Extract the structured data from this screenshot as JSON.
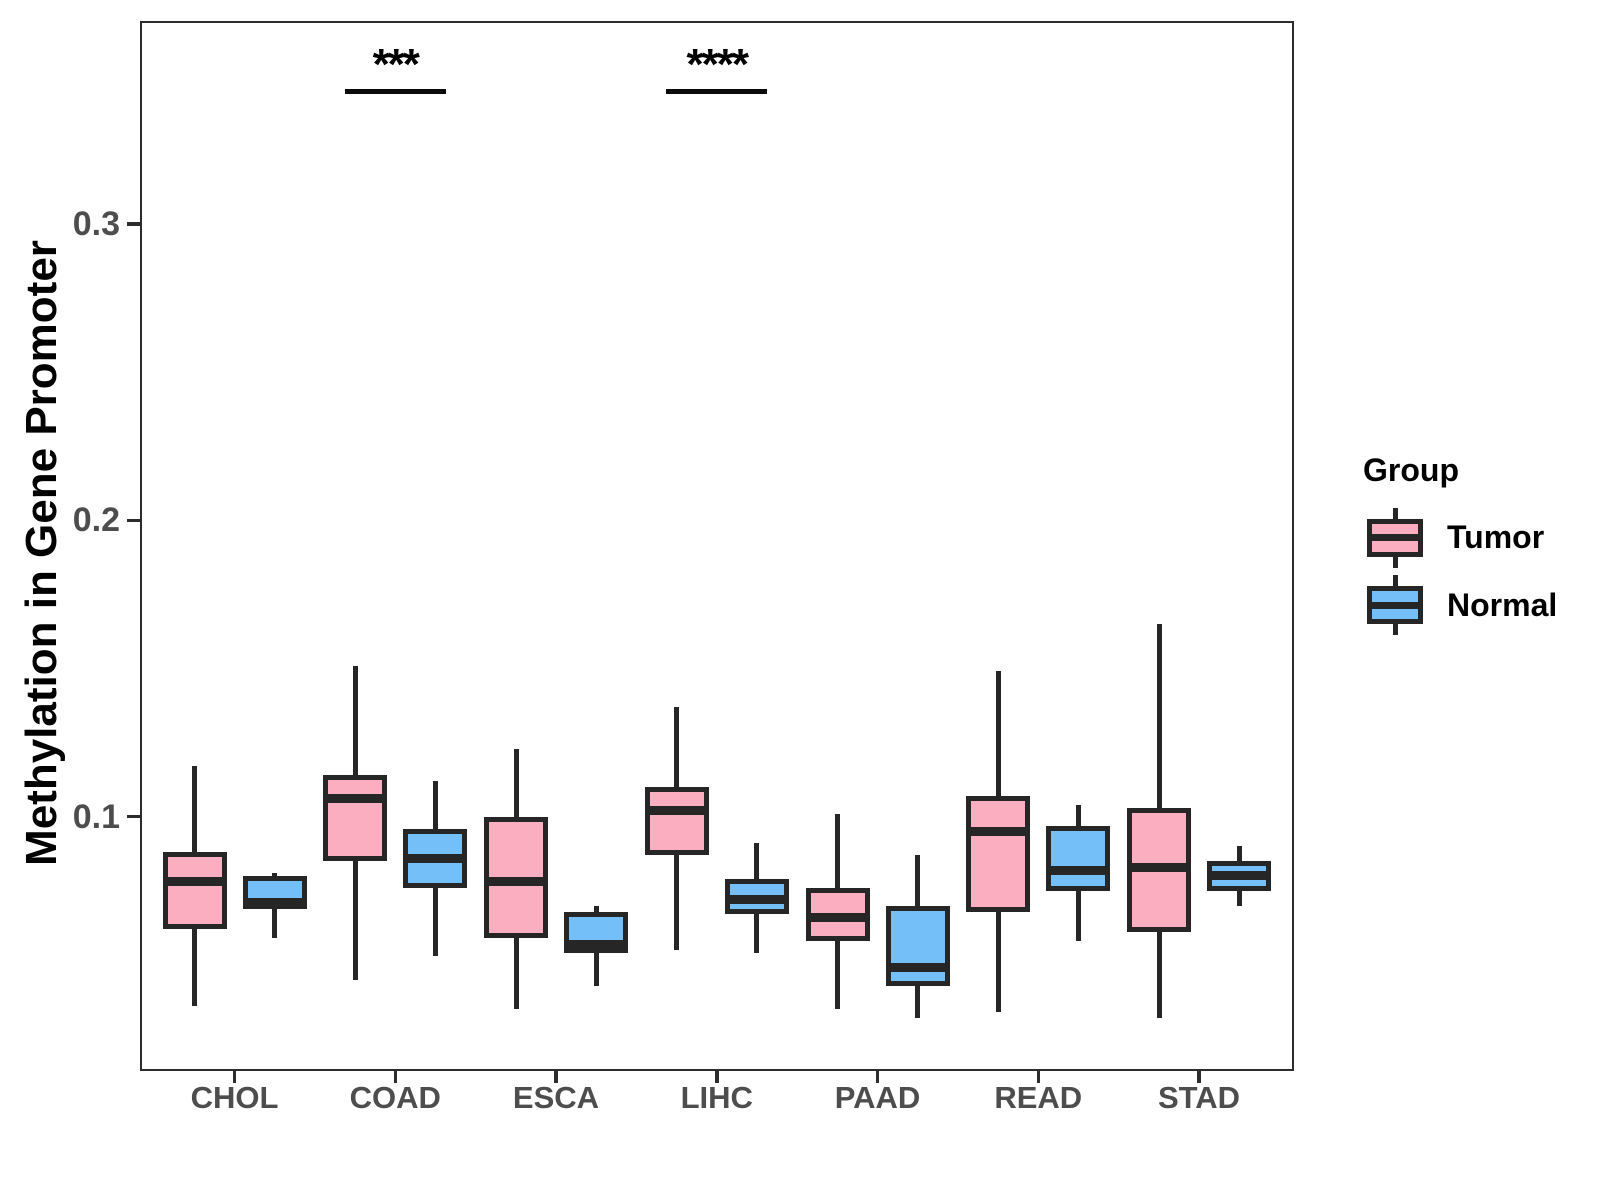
{
  "chart_data": {
    "type": "boxplot",
    "title": "",
    "ylabel": "Methylation in Gene Promoter",
    "xlabel": "",
    "categories": [
      "CHOL",
      "COAD",
      "ESCA",
      "LIHC",
      "PAAD",
      "READ",
      "STAD"
    ],
    "y_ticks": [
      {
        "label": "0.1",
        "value": 0.1
      },
      {
        "label": "0.2",
        "value": 0.2
      },
      {
        "label": "0.3",
        "value": 0.3
      }
    ],
    "ylim": [
      0.014,
      0.369
    ],
    "grid": false,
    "legend": {
      "title": "Group",
      "position": "right",
      "entries": [
        {
          "label": "Tumor",
          "fill": "#FBAEC0"
        },
        {
          "label": "Normal",
          "fill": "#74BFF8"
        }
      ]
    },
    "series": [
      {
        "name": "Tumor",
        "fill": "#FBAEC0",
        "boxes": [
          {
            "category": "CHOL",
            "whisker_low": 0.036,
            "q1": 0.062,
            "median": 0.078,
            "q3": 0.088,
            "whisker_high": 0.117
          },
          {
            "category": "COAD",
            "whisker_low": 0.045,
            "q1": 0.085,
            "median": 0.106,
            "q3": 0.114,
            "whisker_high": 0.151
          },
          {
            "category": "ESCA",
            "whisker_low": 0.035,
            "q1": 0.059,
            "median": 0.078,
            "q3": 0.1,
            "whisker_high": 0.123
          },
          {
            "category": "LIHC",
            "whisker_low": 0.055,
            "q1": 0.087,
            "median": 0.102,
            "q3": 0.11,
            "whisker_high": 0.137
          },
          {
            "category": "PAAD",
            "whisker_low": 0.035,
            "q1": 0.058,
            "median": 0.066,
            "q3": 0.076,
            "whisker_high": 0.101
          },
          {
            "category": "READ",
            "whisker_low": 0.034,
            "q1": 0.068,
            "median": 0.095,
            "q3": 0.107,
            "whisker_high": 0.149
          },
          {
            "category": "STAD",
            "whisker_low": 0.032,
            "q1": 0.061,
            "median": 0.083,
            "q3": 0.103,
            "whisker_high": 0.165
          }
        ]
      },
      {
        "name": "Normal",
        "fill": "#74BFF8",
        "boxes": [
          {
            "category": "CHOL",
            "whisker_low": 0.059,
            "q1": 0.069,
            "median": 0.071,
            "q3": 0.08,
            "whisker_high": 0.081
          },
          {
            "category": "COAD",
            "whisker_low": 0.053,
            "q1": 0.076,
            "median": 0.086,
            "q3": 0.096,
            "whisker_high": 0.112
          },
          {
            "category": "ESCA",
            "whisker_low": 0.043,
            "q1": 0.054,
            "median": 0.057,
            "q3": 0.068,
            "whisker_high": 0.07
          },
          {
            "category": "LIHC",
            "whisker_low": 0.054,
            "q1": 0.067,
            "median": 0.072,
            "q3": 0.079,
            "whisker_high": 0.091
          },
          {
            "category": "PAAD",
            "whisker_low": 0.032,
            "q1": 0.043,
            "median": 0.049,
            "q3": 0.07,
            "whisker_high": 0.087
          },
          {
            "category": "READ",
            "whisker_low": 0.058,
            "q1": 0.075,
            "median": 0.082,
            "q3": 0.097,
            "whisker_high": 0.104
          },
          {
            "category": "STAD",
            "whisker_low": 0.07,
            "q1": 0.075,
            "median": 0.08,
            "q3": 0.085,
            "whisker_high": 0.09
          }
        ]
      }
    ],
    "annotations": [
      {
        "category": "COAD",
        "label": "***"
      },
      {
        "category": "LIHC",
        "label": "****"
      }
    ],
    "style_colors": {
      "box_stroke": "#262626",
      "axis_text": "#4d4d4d",
      "axis_line": "#2d2d2d",
      "annotation": "#000000"
    }
  }
}
